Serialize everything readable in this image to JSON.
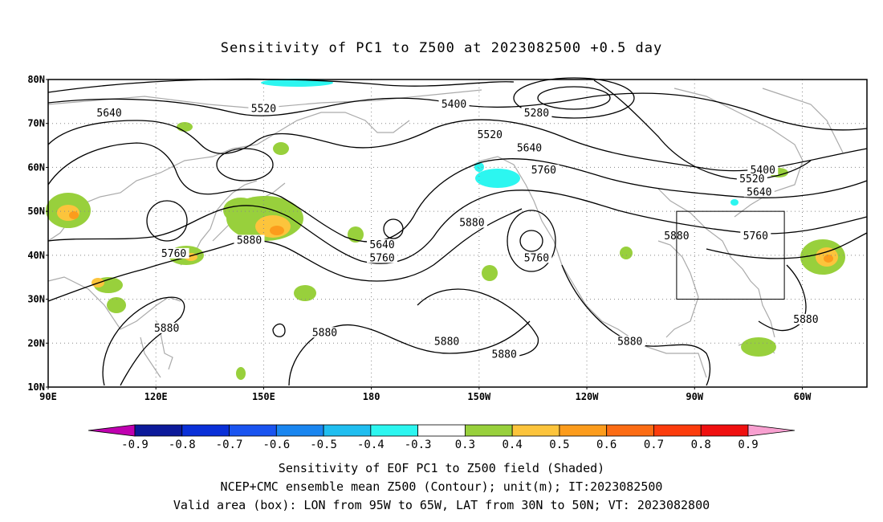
{
  "title": "Sensitivity of PC1 to Z500 at 2023082500 +0.5 day",
  "map": {
    "lat_ticks": [
      "80N",
      "70N",
      "60N",
      "50N",
      "40N",
      "30N",
      "20N",
      "10N"
    ],
    "lon_ticks": [
      "90E",
      "120E",
      "150E",
      "180",
      "150W",
      "120W",
      "90W",
      "60W"
    ],
    "grid": "dotted",
    "contour_labels": [
      {
        "text": "5640",
        "lon": 107,
        "lat": 72
      },
      {
        "text": "5520",
        "lon": 150,
        "lat": 73
      },
      {
        "text": "5400",
        "lon": 203,
        "lat": 74
      },
      {
        "text": "5280",
        "lon": 226,
        "lat": 72
      },
      {
        "text": "5520",
        "lon": 213,
        "lat": 67
      },
      {
        "text": "5640",
        "lon": 224,
        "lat": 64
      },
      {
        "text": "5760",
        "lon": 228,
        "lat": 59
      },
      {
        "text": "5400",
        "lon": 289,
        "lat": 59
      },
      {
        "text": "5520",
        "lon": 286,
        "lat": 57
      },
      {
        "text": "5640",
        "lon": 288,
        "lat": 54
      },
      {
        "text": "5880",
        "lon": 146,
        "lat": 43
      },
      {
        "text": "5640",
        "lon": 183,
        "lat": 42
      },
      {
        "text": "5760",
        "lon": 183,
        "lat": 39
      },
      {
        "text": "5880",
        "lon": 208,
        "lat": 47
      },
      {
        "text": "5880",
        "lon": 265,
        "lat": 44
      },
      {
        "text": "5760",
        "lon": 287,
        "lat": 44
      },
      {
        "text": "5760",
        "lon": 125,
        "lat": 40
      },
      {
        "text": "5760",
        "lon": 226,
        "lat": 39
      },
      {
        "text": "5880",
        "lon": 123,
        "lat": 23
      },
      {
        "text": "5880",
        "lon": 167,
        "lat": 22
      },
      {
        "text": "5880",
        "lon": 201,
        "lat": 20
      },
      {
        "text": "5880",
        "lon": 217,
        "lat": 17
      },
      {
        "text": "5880",
        "lon": 252,
        "lat": 20
      },
      {
        "text": "5880",
        "lon": 301,
        "lat": 25
      }
    ],
    "valid_box": {
      "lon_from": 265,
      "lon_to": 295,
      "lat_from": 30,
      "lat_to": 50
    }
  },
  "colorbar": {
    "labels": [
      "-0.9",
      "-0.8",
      "-0.7",
      "-0.6",
      "-0.5",
      "-0.4",
      "-0.3",
      "0.3",
      "0.4",
      "0.5",
      "0.6",
      "0.7",
      "0.8",
      "0.9"
    ],
    "colors": [
      "#c000b0",
      "#0c1a9a",
      "#0a30d8",
      "#1a54f0",
      "#1a86f0",
      "#20bef0",
      "#2cf6f0",
      "#ffffff",
      "#98d03c",
      "#fcc43c",
      "#fc9c1c",
      "#fc6c14",
      "#fc3c0c",
      "#f01010",
      "#f8a0d0"
    ]
  },
  "captions": [
    "Sensitivity of EOF PC1 to Z500 field (Shaded)",
    "NCEP+CMC ensemble mean Z500 (Contour); unit(m); IT:2023082500",
    "Valid area (box): LON from 95W to 65W, LAT from 30N to 50N; VT: 2023082800"
  ]
}
